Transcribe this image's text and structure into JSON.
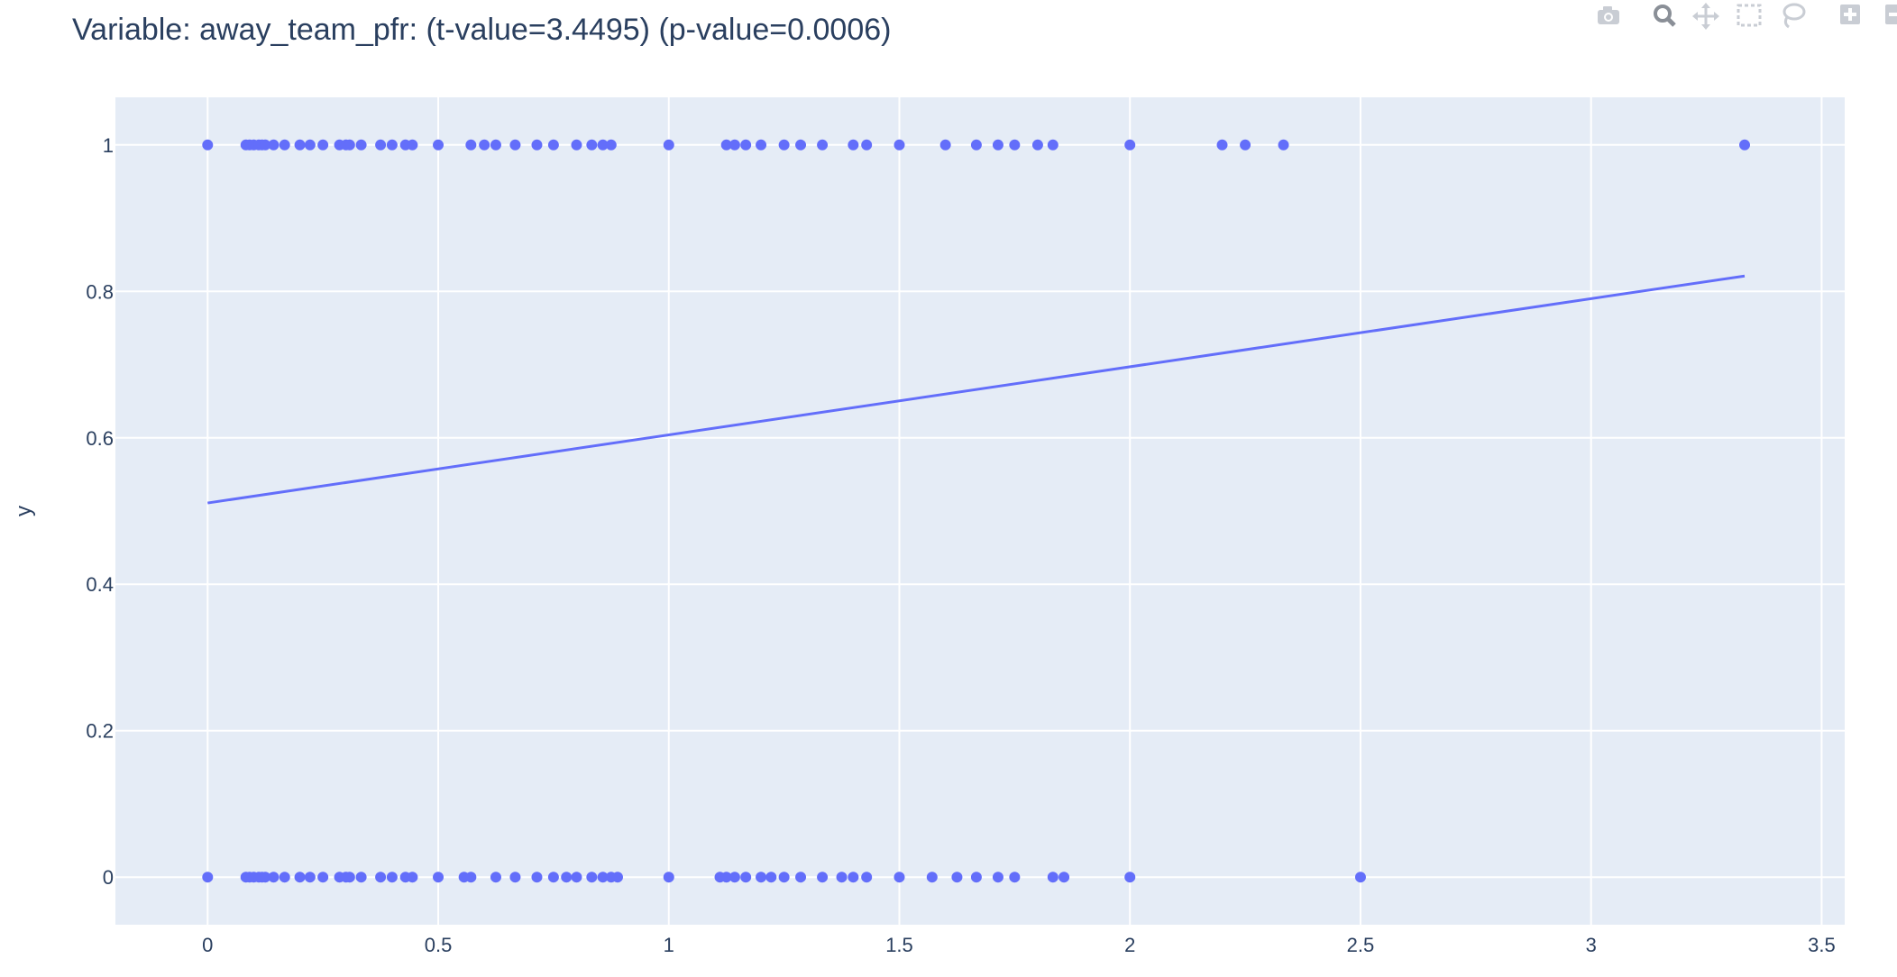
{
  "title": "Variable: away_team_pfr: (t-value=3.4495) (p-value=0.0006)",
  "colors": {
    "marker": "#636efa",
    "plot_bg": "#e5ecf6",
    "grid": "#ffffff",
    "text": "#2a3f5f",
    "modebar_icon": "#c9cdd4",
    "modebar_active": "#8a8f97"
  },
  "modebar": [
    {
      "icon": "camera-icon"
    },
    {
      "icon": "zoom-icon"
    },
    {
      "icon": "pan-icon"
    },
    {
      "icon": "box-select-icon"
    },
    {
      "icon": "lasso-select-icon"
    },
    {
      "icon": "zoom-in-icon"
    },
    {
      "icon": "zoom-out-icon"
    },
    {
      "icon": "autoscale-icon"
    }
  ],
  "chart_data": {
    "type": "scatter",
    "xlabel": "",
    "ylabel": "y",
    "xlim": [
      -0.2,
      3.55
    ],
    "ylim": [
      -0.065,
      1.065
    ],
    "xticks": [
      0,
      0.5,
      1,
      1.5,
      2,
      2.5,
      3,
      3.5
    ],
    "yticks": [
      0,
      0.2,
      0.4,
      0.6,
      0.8,
      1
    ],
    "grid": true,
    "legend": "none",
    "series": [
      {
        "type": "scatter",
        "x": [
          0,
          0.083,
          0.091,
          0.1,
          0.111,
          0.118,
          0.125,
          0.143,
          0.167,
          0.2,
          0.222,
          0.25,
          0.286,
          0.3,
          0.308,
          0.333,
          0.375,
          0.4,
          0.429,
          0.444,
          0.5,
          0.571,
          0.6,
          0.625,
          0.667,
          0.714,
          0.75,
          0.8,
          0.833,
          0.857,
          0.875,
          1,
          1.125,
          1.143,
          1.167,
          1.2,
          1.25,
          1.286,
          1.333,
          1.4,
          1.429,
          1.5,
          1.6,
          1.667,
          1.714,
          1.75,
          1.8,
          1.833,
          2,
          2.2,
          2.25,
          2.333,
          3.333
        ],
        "y": [
          1,
          1,
          1,
          1,
          1,
          1,
          1,
          1,
          1,
          1,
          1,
          1,
          1,
          1,
          1,
          1,
          1,
          1,
          1,
          1,
          1,
          1,
          1,
          1,
          1,
          1,
          1,
          1,
          1,
          1,
          1,
          1,
          1,
          1,
          1,
          1,
          1,
          1,
          1,
          1,
          1,
          1,
          1,
          1,
          1,
          1,
          1,
          1,
          1,
          1,
          1,
          1,
          1
        ]
      },
      {
        "type": "scatter",
        "x": [
          0,
          0.083,
          0.091,
          0.1,
          0.111,
          0.118,
          0.125,
          0.143,
          0.167,
          0.2,
          0.222,
          0.25,
          0.286,
          0.3,
          0.308,
          0.333,
          0.375,
          0.4,
          0.429,
          0.444,
          0.5,
          0.556,
          0.571,
          0.625,
          0.667,
          0.714,
          0.75,
          0.778,
          0.8,
          0.833,
          0.857,
          0.875,
          0.889,
          1,
          1.111,
          1.125,
          1.143,
          1.167,
          1.2,
          1.222,
          1.25,
          1.286,
          1.333,
          1.375,
          1.4,
          1.429,
          1.5,
          1.571,
          1.625,
          1.667,
          1.714,
          1.75,
          1.833,
          1.857,
          2,
          2.5
        ],
        "y": [
          0,
          0,
          0,
          0,
          0,
          0,
          0,
          0,
          0,
          0,
          0,
          0,
          0,
          0,
          0,
          0,
          0,
          0,
          0,
          0,
          0,
          0,
          0,
          0,
          0,
          0,
          0,
          0,
          0,
          0,
          0,
          0,
          0,
          0,
          0,
          0,
          0,
          0,
          0,
          0,
          0,
          0,
          0,
          0,
          0,
          0,
          0,
          0,
          0,
          0,
          0,
          0,
          0,
          0,
          0,
          0
        ]
      },
      {
        "type": "line",
        "x": [
          0,
          3.333
        ],
        "y": [
          0.511,
          0.821
        ]
      }
    ]
  }
}
